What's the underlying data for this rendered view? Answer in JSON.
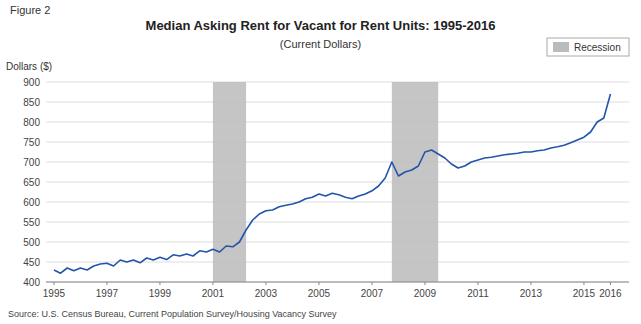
{
  "chart_data": {
    "type": "line",
    "title": "Median Asking Rent for Vacant for Rent Units: 1995-2016",
    "subtitle": "(Current Dollars)",
    "y_label": "Dollars ($)",
    "annotations": [
      "Figure 2",
      "Source: U.S. Census Bureau, Current Population Survey/Housing Vacancy Survey"
    ],
    "x": [
      1995.0,
      1995.25,
      1995.5,
      1995.75,
      1996.0,
      1996.25,
      1996.5,
      1996.75,
      1997.0,
      1997.25,
      1997.5,
      1997.75,
      1998.0,
      1998.25,
      1998.5,
      1998.75,
      1999.0,
      1999.25,
      1999.5,
      1999.75,
      2000.0,
      2000.25,
      2000.5,
      2000.75,
      2001.0,
      2001.25,
      2001.5,
      2001.75,
      2002.0,
      2002.25,
      2002.5,
      2002.75,
      2003.0,
      2003.25,
      2003.5,
      2003.75,
      2004.0,
      2004.25,
      2004.5,
      2004.75,
      2005.0,
      2005.25,
      2005.5,
      2005.75,
      2006.0,
      2006.25,
      2006.5,
      2006.75,
      2007.0,
      2007.25,
      2007.5,
      2007.75,
      2008.0,
      2008.25,
      2008.5,
      2008.75,
      2009.0,
      2009.25,
      2009.5,
      2009.75,
      2010.0,
      2010.25,
      2010.5,
      2010.75,
      2011.0,
      2011.25,
      2011.5,
      2011.75,
      2012.0,
      2012.25,
      2012.5,
      2012.75,
      2013.0,
      2013.25,
      2013.5,
      2013.75,
      2014.0,
      2014.25,
      2014.5,
      2014.75,
      2015.0,
      2015.25,
      2015.5,
      2015.75,
      2016.0
    ],
    "values": [
      430,
      422,
      435,
      428,
      435,
      430,
      440,
      445,
      447,
      440,
      455,
      450,
      455,
      448,
      460,
      455,
      462,
      456,
      468,
      465,
      470,
      465,
      478,
      475,
      482,
      475,
      490,
      488,
      500,
      530,
      555,
      570,
      578,
      580,
      588,
      592,
      595,
      600,
      608,
      612,
      620,
      615,
      622,
      618,
      612,
      608,
      615,
      620,
      628,
      640,
      660,
      700,
      665,
      675,
      680,
      690,
      725,
      730,
      720,
      710,
      695,
      685,
      690,
      700,
      705,
      710,
      712,
      715,
      718,
      720,
      722,
      725,
      725,
      728,
      730,
      735,
      738,
      742,
      748,
      755,
      762,
      775,
      800,
      810,
      870
    ],
    "color": "#2255AA",
    "bands": {
      "name": "Recession",
      "color": "#BBBBBB",
      "ranges": [
        [
          2001.0,
          2002.25
        ],
        [
          2007.75,
          2009.5
        ]
      ]
    },
    "xlim": [
      1994.7,
      2016.7
    ],
    "xticks": [
      1995,
      1997,
      1999,
      2001,
      2003,
      2005,
      2007,
      2009,
      2011,
      2013,
      2015,
      2016
    ],
    "ylim": [
      400,
      900
    ],
    "yticks": [
      400,
      450,
      500,
      550,
      600,
      650,
      700,
      750,
      800,
      850,
      900
    ],
    "grid": true,
    "legend": "top-right"
  }
}
